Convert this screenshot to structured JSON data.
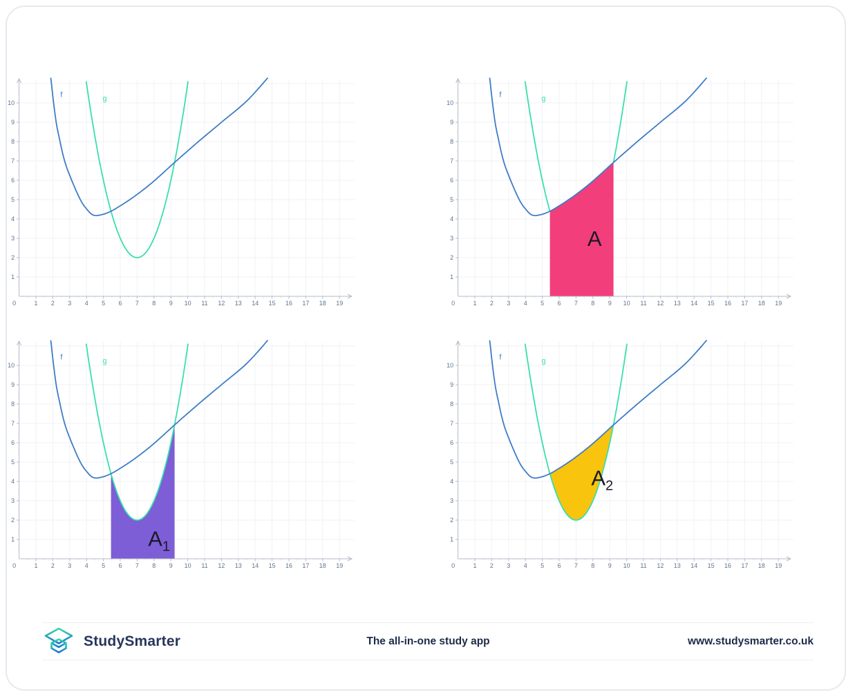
{
  "page": {
    "background": "#ffffff",
    "card_border": "#e7e9ee"
  },
  "footer": {
    "brand": "StudySmarter",
    "tagline": "The all-in-one study app",
    "website": "www.studysmarter.co.uk",
    "brand_color": "#26365b",
    "text_color": "#1d2b49",
    "logo_gradient_top": "#2edcae",
    "logo_gradient_bottom": "#1d74cf"
  },
  "chart_data": {
    "type": "line",
    "x_range": [
      0,
      19.8
    ],
    "y_range": [
      0,
      11.3
    ],
    "x_ticks": [
      0,
      1,
      2,
      3,
      4,
      5,
      6,
      7,
      8,
      9,
      10,
      11,
      12,
      13,
      14,
      15,
      16,
      17,
      18,
      19
    ],
    "y_ticks": [
      1,
      2,
      3,
      4,
      5,
      6,
      7,
      8,
      9,
      10
    ],
    "grid": true,
    "axis_color": "#b3bac4",
    "minor_tick_color": "#d6dbe2",
    "tick_label_color": "#5d7390",
    "grid_color": "#f0f2f5",
    "region_label_color": "#1a1a26",
    "curves": {
      "f": {
        "label": "f",
        "color": "#3e7cc6",
        "label_pos": [
          2.45,
          10.3
        ],
        "points": [
          [
            1.88,
            11.3
          ],
          [
            2.02,
            10.2
          ],
          [
            2.2,
            9.0
          ],
          [
            2.38,
            8.2
          ],
          [
            2.7,
            7.0
          ],
          [
            3.12,
            6.0
          ],
          [
            3.63,
            5.0
          ],
          [
            4.0,
            4.52
          ],
          [
            4.4,
            4.2
          ],
          [
            4.9,
            4.22
          ],
          [
            5.45,
            4.4
          ],
          [
            6.0,
            4.68
          ],
          [
            6.6,
            5.02
          ],
          [
            7.2,
            5.4
          ],
          [
            8.0,
            5.96
          ],
          [
            9.22,
            6.92
          ],
          [
            10.5,
            7.9
          ],
          [
            12.0,
            9.0
          ],
          [
            13.5,
            10.1
          ],
          [
            14.75,
            11.3
          ]
        ]
      },
      "g": {
        "label": "g",
        "color": "#38dfad",
        "label_pos": [
          4.95,
          10.1
        ],
        "formula": "g(x) = (x-7)^2 + 2",
        "params": {
          "a": 1,
          "h": 7,
          "k": 2
        },
        "x_range": [
          3.98,
          10.02
        ]
      }
    },
    "intersections": [
      [
        5.45,
        4.4
      ],
      [
        9.22,
        6.92
      ]
    ],
    "panels": [
      {
        "name": "curves-only",
        "region": null
      },
      {
        "name": "area-A",
        "region": {
          "label": "A",
          "subscript": "",
          "type": "under_f",
          "color": "#f23e7b",
          "label_pos": [
            8.1,
            3.0
          ],
          "clip_g": true
        }
      },
      {
        "name": "area-A1",
        "region": {
          "label": "A",
          "subscript": "1",
          "type": "under_g",
          "color": "#7d5ed6",
          "label_pos": [
            8.3,
            1.05
          ]
        }
      },
      {
        "name": "area-A2",
        "region": {
          "label": "A",
          "subscript": "2",
          "type": "between",
          "color": "#f8c40d",
          "label_pos": [
            8.55,
            4.2
          ]
        }
      }
    ]
  }
}
